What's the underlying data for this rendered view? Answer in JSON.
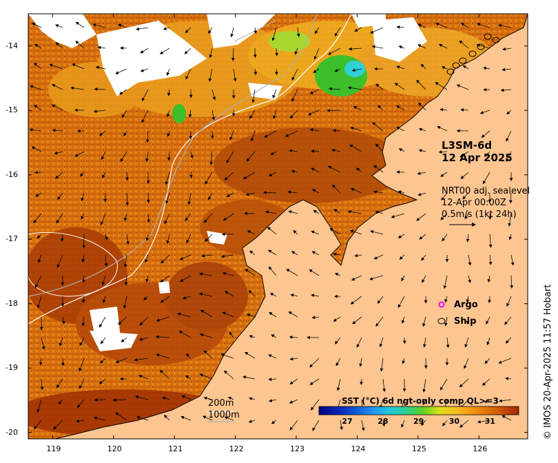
{
  "product": {
    "name": "L3SM-6d",
    "date": "12 Apr 2025"
  },
  "currents": {
    "source": "NRT00 adj. sealevel",
    "time": "12-Apr 00:00Z",
    "scale": "0.5m/s (1kt 24h)"
  },
  "legend": {
    "argo": "Argo",
    "ship": "Ship"
  },
  "contours": {
    "c200": "200m",
    "c1000": "1000m"
  },
  "colorbar": {
    "title": "SST (°C) 6d ngt-only comp QL>=3",
    "ticks": [
      "27",
      "28",
      "29",
      "30",
      "31"
    ],
    "min": 26.2,
    "max": 31.8
  },
  "axes": {
    "x_ticks": [
      "119",
      "120",
      "121",
      "122",
      "123",
      "124",
      "125",
      "126"
    ],
    "y_ticks": [
      "-14",
      "-15",
      "-16",
      "-17",
      "-18",
      "-19",
      "-20"
    ],
    "lon_range": [
      118.6,
      126.8
    ],
    "lat_range": [
      -20.1,
      -13.5
    ]
  },
  "credit": "© IMOS 20-Apr-2025 11:57 Hobart",
  "colors": {
    "land": "#fdc590",
    "cloud": "#ffffff",
    "sst_warm": "#a83c05",
    "sst_mid": "#e07a0c",
    "sst_cool": "#f2b21a",
    "sst_green": "#3cbf2a",
    "sst_cyan": "#2fd0d8",
    "argo": "#ff00ff"
  }
}
